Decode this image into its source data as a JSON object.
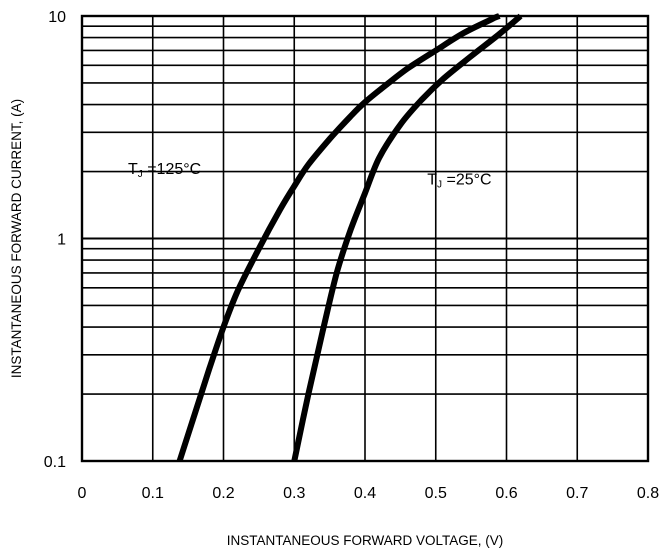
{
  "chart_data": {
    "type": "line",
    "xlabel": "INSTANTANEOUS FORWARD VOLTAGE, (V)",
    "ylabel": "INSTANTANEOUS FORWARD CURRENT, (A)",
    "x_scale": "linear",
    "y_scale": "log",
    "xlim": [
      0,
      0.8
    ],
    "ylim": [
      0.1,
      10
    ],
    "x_ticks": [
      "0",
      "0.1",
      "0.2",
      "0.3",
      "0.4",
      "0.5",
      "0.6",
      "0.7",
      "0.8"
    ],
    "y_ticks": [
      "0.1",
      "1",
      "10"
    ],
    "grid": true,
    "legend": "none",
    "series": [
      {
        "label": "125°C",
        "x": [
          0.138,
          0.16,
          0.18,
          0.2,
          0.22,
          0.25,
          0.28,
          0.3,
          0.32,
          0.35,
          0.38,
          0.4,
          0.43,
          0.46,
          0.5,
          0.54,
          0.58,
          0.59
        ],
        "y": [
          0.1,
          0.165,
          0.26,
          0.4,
          0.58,
          0.9,
          1.35,
          1.72,
          2.15,
          2.8,
          3.55,
          4.1,
          4.9,
          5.8,
          7.0,
          8.4,
          9.7,
          10.0
        ]
      },
      {
        "label": "25°C",
        "x": [
          0.3,
          0.32,
          0.34,
          0.36,
          0.38,
          0.4,
          0.42,
          0.45,
          0.48,
          0.51,
          0.55,
          0.59,
          0.62
        ],
        "y": [
          0.1,
          0.2,
          0.38,
          0.7,
          1.1,
          1.6,
          2.3,
          3.25,
          4.2,
          5.2,
          6.6,
          8.3,
          10.0
        ]
      }
    ],
    "annotations": [
      {
        "t": "T",
        "sub": "J",
        "rest": " =125°C",
        "x": 0.065,
        "y": 1.95
      },
      {
        "t": "T",
        "sub": "J",
        "rest": " =25°C",
        "x": 0.488,
        "y": 1.75
      }
    ]
  }
}
